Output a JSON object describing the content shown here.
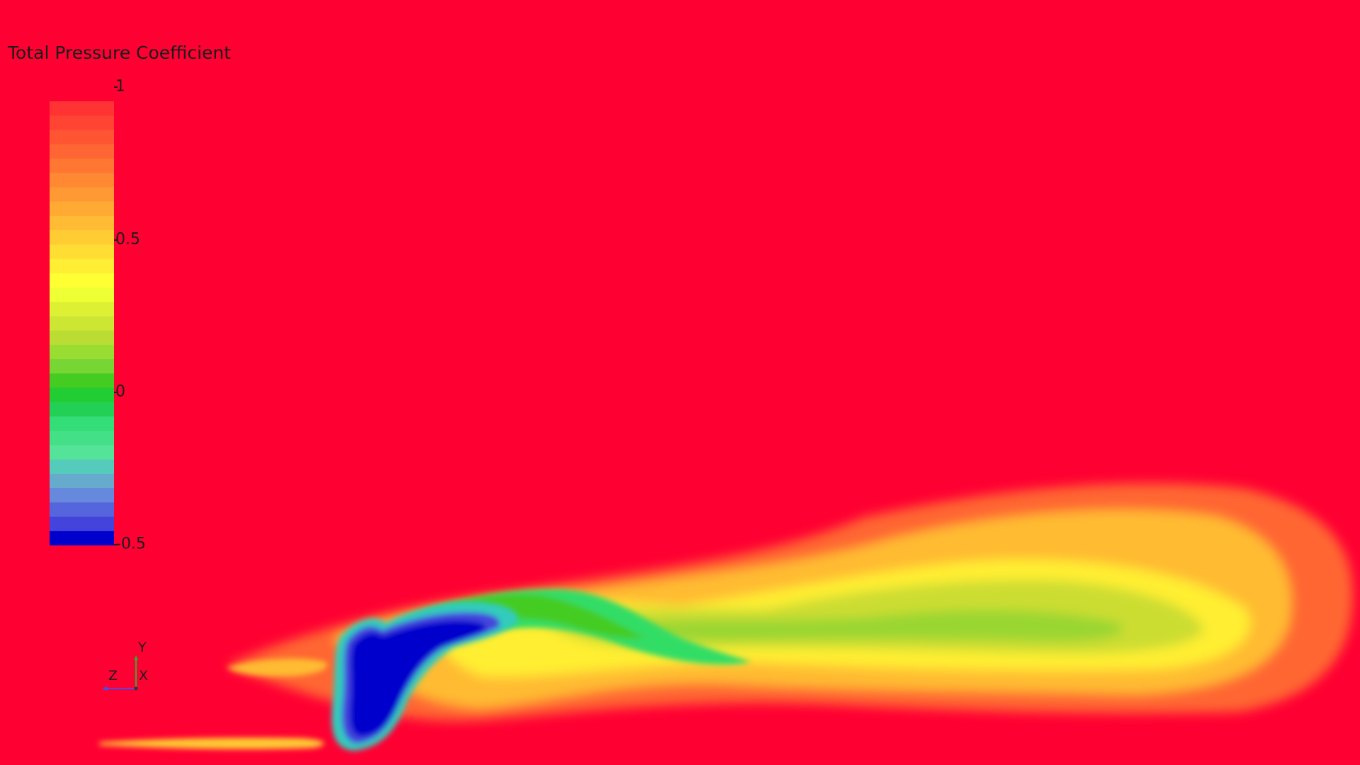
{
  "legend": {
    "title": "Total Pressure Coefficient",
    "ticks": [
      "1",
      "0.5",
      "0",
      "-0.5"
    ],
    "range": [
      -0.5,
      1
    ],
    "colors": [
      "#ff3333",
      "#ff4433",
      "#ff5533",
      "#ff6633",
      "#ff7733",
      "#ff8833",
      "#ff9933",
      "#ffaa33",
      "#ffbb33",
      "#ffcc33",
      "#ffdd33",
      "#ffee33",
      "#ffff33",
      "#eeff33",
      "#ddf033",
      "#cce633",
      "#bbdd33",
      "#99dd33",
      "#77d633",
      "#44cc22",
      "#22cc33",
      "#22d055",
      "#33dd77",
      "#44e088",
      "#55e399",
      "#55ccbb",
      "#66aacc",
      "#6688dd",
      "#5566dd",
      "#4444dd",
      "#0000cc"
    ]
  },
  "field": {
    "background": "#ff0033"
  },
  "triad": {
    "x": "X",
    "y": "Y",
    "z": "Z"
  }
}
